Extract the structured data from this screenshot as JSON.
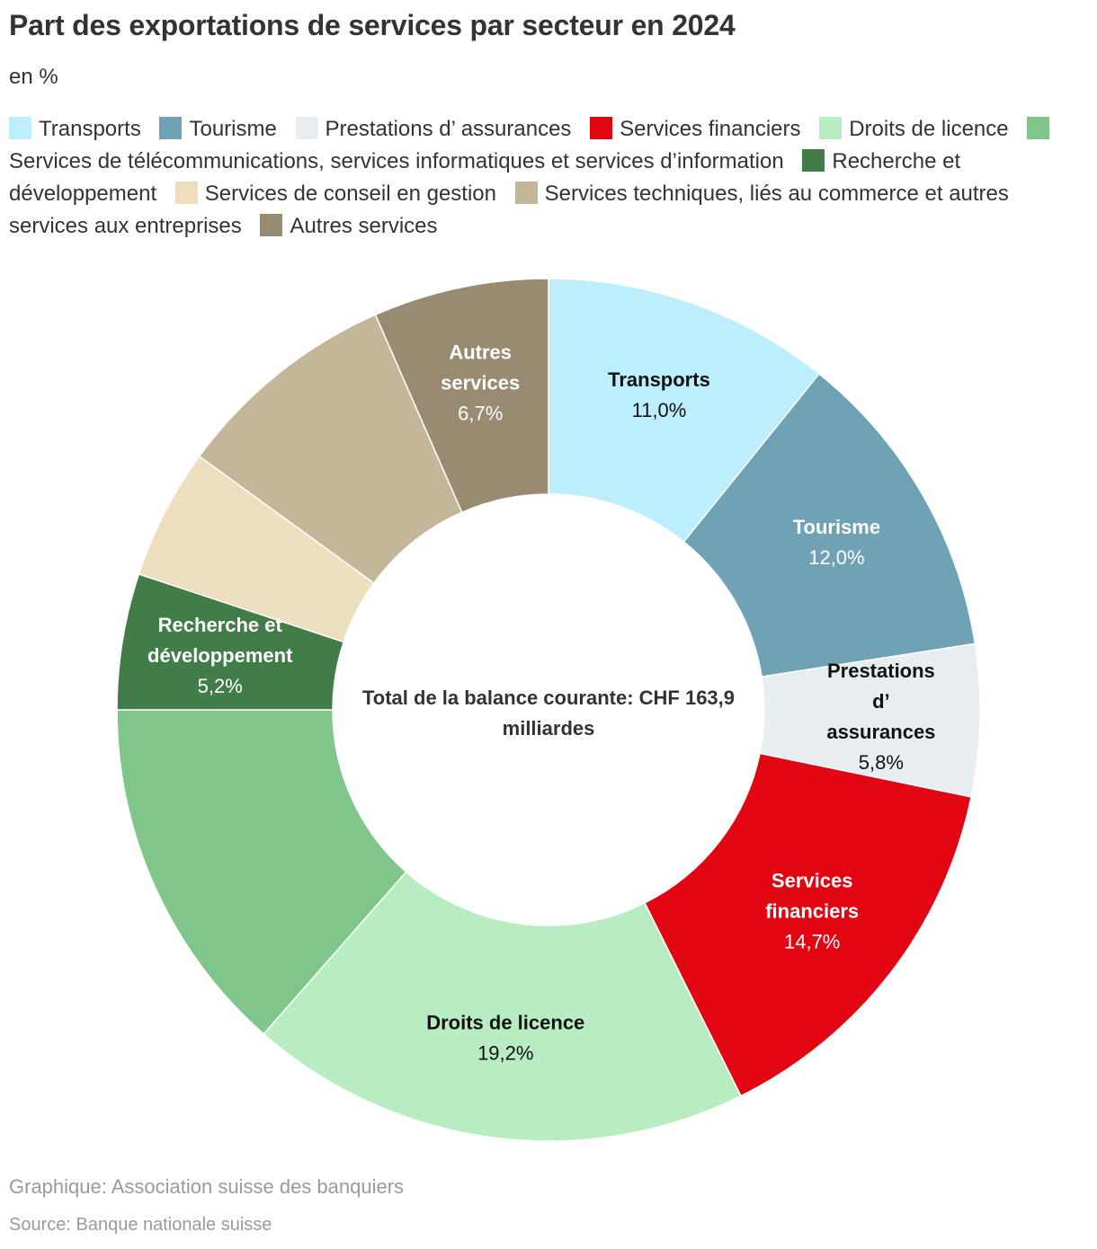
{
  "title": "Part des exportations de services par secteur en 2024",
  "subtitle": "en %",
  "center_label": "Total de la balance courante: CHF 163,9 milliardes",
  "footer": {
    "credit": "Graphique: Association suisse des banquiers",
    "source": "Source: Banque nationale suisse"
  },
  "chart_data": {
    "type": "pie",
    "variant": "donut",
    "unit": "%",
    "legend_position": "top",
    "center_text": "Total de la balance courante: CHF 163,9 milliardes",
    "slices": [
      {
        "label": "Transports",
        "value": 11.0,
        "display_value": "11,0%",
        "color": "#bdeefb",
        "label_lines": [
          "Transports"
        ],
        "text_color": "#111111"
      },
      {
        "label": "Tourisme",
        "value": 12.0,
        "display_value": "12,0%",
        "color": "#6fa2b4",
        "label_lines": [
          "Tourisme"
        ],
        "text_color": "#ffffff"
      },
      {
        "label": "Prestations d’ assurances",
        "value": 5.8,
        "display_value": "5,8%",
        "color": "#e8edf0",
        "label_lines": [
          "Prestations",
          "d’",
          "assurances"
        ],
        "text_color": "#111111"
      },
      {
        "label": "Services financiers",
        "value": 14.7,
        "display_value": "14,7%",
        "color": "#e20613",
        "label_lines": [
          "Services",
          "financiers"
        ],
        "text_color": "#ffffff"
      },
      {
        "label": "Droits de licence",
        "value": 19.2,
        "display_value": "19,2%",
        "color": "#b8edc2",
        "label_lines": [
          "Droits de licence"
        ],
        "text_color": "#111111"
      },
      {
        "label": "Services de télécommunications, services informatiques et services d’information",
        "value": 13.8,
        "display_value": "",
        "color": "#80c68a",
        "label_lines": [],
        "text_color": "#111111"
      },
      {
        "label": "Recherche et développement",
        "value": 5.2,
        "display_value": "5,2%",
        "color": "#427c48",
        "label_lines": [
          "Recherche et",
          "développement"
        ],
        "text_color": "#ffffff"
      },
      {
        "label": "Services de conseil en gestion",
        "value": 5.0,
        "display_value": "",
        "color": "#eddebe",
        "label_lines": [],
        "text_color": "#111111"
      },
      {
        "label": "Services techniques, liés au commerce et autres services aux entreprises",
        "value": 8.6,
        "display_value": "",
        "color": "#c4b698",
        "label_lines": [],
        "text_color": "#111111"
      },
      {
        "label": "Autres services",
        "value": 6.7,
        "display_value": "6,7%",
        "color": "#988b72",
        "label_lines": [
          "Autres",
          "services"
        ],
        "text_color": "#ffffff"
      }
    ]
  }
}
